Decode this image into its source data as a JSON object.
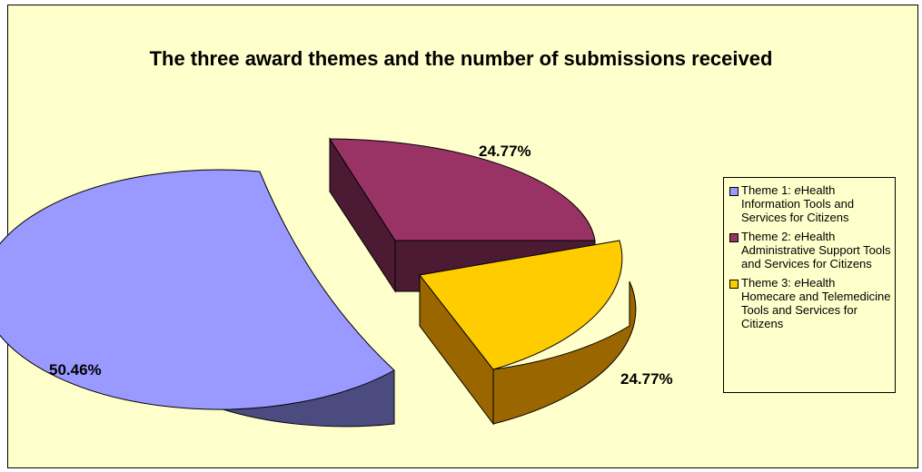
{
  "chart_data": {
    "type": "pie",
    "title": "The three award themes and the number of submissions received",
    "slices": [
      {
        "name": "Theme 1: eHealth Information Tools and Services for Citizens",
        "legend_prefix": "Theme 1: ",
        "legend_italic": "e",
        "legend_rest": "Health Information Tools and Services for Citizens",
        "value": 50.46,
        "label": "50.46%",
        "color": "#9999ff",
        "side_color": "#4b4b7f"
      },
      {
        "name": "Theme 2: eHealth Administrative Support Tools and Services for Citizens",
        "legend_prefix": "Theme 2: ",
        "legend_italic": "e",
        "legend_rest": "Health Administrative Support Tools and Services for Citizens",
        "value": 24.77,
        "label": "24.77%",
        "color": "#993366",
        "side_color": "#4c1a33"
      },
      {
        "name": "Theme 3: eHealth Homecare and Telemedicine Tools and Services for Citizens",
        "legend_prefix": "Theme 3: ",
        "legend_italic": "e",
        "legend_rest": "Health Homecare and Telemedicine Tools and Services for Citizens",
        "value": 24.77,
        "label": "24.77%",
        "color": "#ffcc00",
        "side_color": "#996600"
      }
    ],
    "exploded": true,
    "three_d": true,
    "legend_position": "right"
  }
}
